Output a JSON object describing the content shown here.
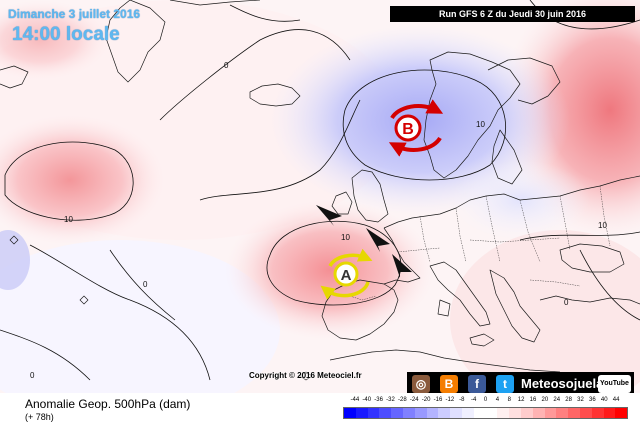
{
  "header": {
    "date_line": "Dimanche 3 juillet 2016",
    "time_line": "14:00 locale",
    "run_info": "Run GFS 6 Z du Jeudi 30 juin 2016"
  },
  "map": {
    "pressure_centers": [
      {
        "letter": "B",
        "meaning": "low"
      },
      {
        "letter": "A",
        "meaning": "high"
      }
    ],
    "contour_labels": [
      "10",
      "10",
      "10",
      "10",
      "0",
      "0",
      "0",
      "0"
    ],
    "colors": {
      "negative": "#6b6bff",
      "positive": "#ff6b6b",
      "low_arrows": "#d40000",
      "high_arrows": "#e6d800"
    }
  },
  "copyright": "Copyright © 2016 Meteociel.fr",
  "social": {
    "icons": [
      "instagram-icon",
      "blogger-icon",
      "facebook-icon",
      "twitter-icon"
    ],
    "brand": "Meteosojuela",
    "youtube": "YouTube"
  },
  "legend": {
    "title": "Anomalie Geop. 500hPa (dam)",
    "subtitle": "(+ 78h)",
    "scale_values": [
      "-44",
      "-40",
      "-36",
      "-32",
      "-28",
      "-24",
      "-20",
      "-16",
      "-12",
      "-8",
      "-4",
      "0",
      "4",
      "8",
      "12",
      "16",
      "20",
      "24",
      "28",
      "32",
      "36",
      "40",
      "44"
    ],
    "scale_colors": [
      "#0000ff",
      "#1a1aff",
      "#3333ff",
      "#4d4dff",
      "#6666ff",
      "#8080ff",
      "#9999ff",
      "#b3b3ff",
      "#ccccff",
      "#e0e0ff",
      "#f0f0ff",
      "#ffffff",
      "#ffffff",
      "#fff0f0",
      "#ffe0e0",
      "#ffcccc",
      "#ffb3b3",
      "#ff9999",
      "#ff8080",
      "#ff6666",
      "#ff4d4d",
      "#ff3333",
      "#ff1a1a",
      "#ff0000"
    ]
  }
}
